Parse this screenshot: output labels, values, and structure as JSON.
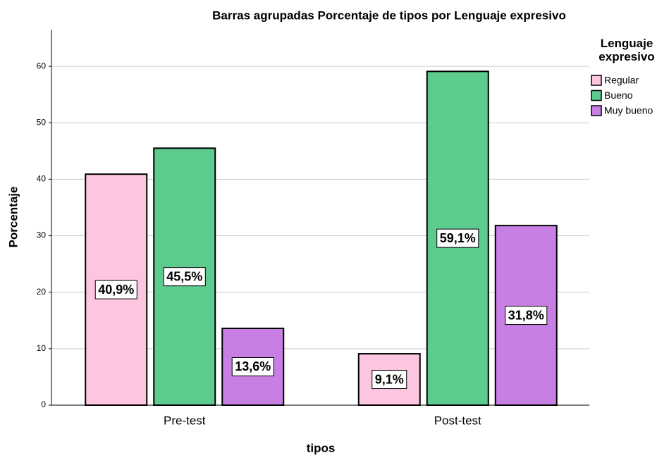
{
  "chart_data": {
    "type": "bar",
    "title": "Barras agrupadas Porcentaje de tipos por Lenguaje expresivo",
    "x_label": "tipos",
    "y_label": "Porcentaje",
    "legend_title": "Lenguaje expresivo",
    "categories": [
      "Pre-test",
      "Post-test"
    ],
    "series": [
      {
        "name": "Regular",
        "color": "#fcc5e0",
        "values": [
          40.9,
          9.1
        ],
        "value_labels": [
          "40,9%",
          "9,1%"
        ]
      },
      {
        "name": "Bueno",
        "color": "#5ccb8d",
        "values": [
          45.5,
          59.1
        ],
        "value_labels": [
          "45,5%",
          "59,1%"
        ]
      },
      {
        "name": "Muy bueno",
        "color": "#c77fe3",
        "values": [
          13.6,
          31.8
        ],
        "value_labels": [
          "13,6%",
          "31,8%"
        ]
      }
    ],
    "ylim": [
      0,
      66.5
    ],
    "yticks": [
      0,
      10,
      20,
      30,
      40,
      50,
      60
    ],
    "grid": true,
    "legend": "right"
  }
}
